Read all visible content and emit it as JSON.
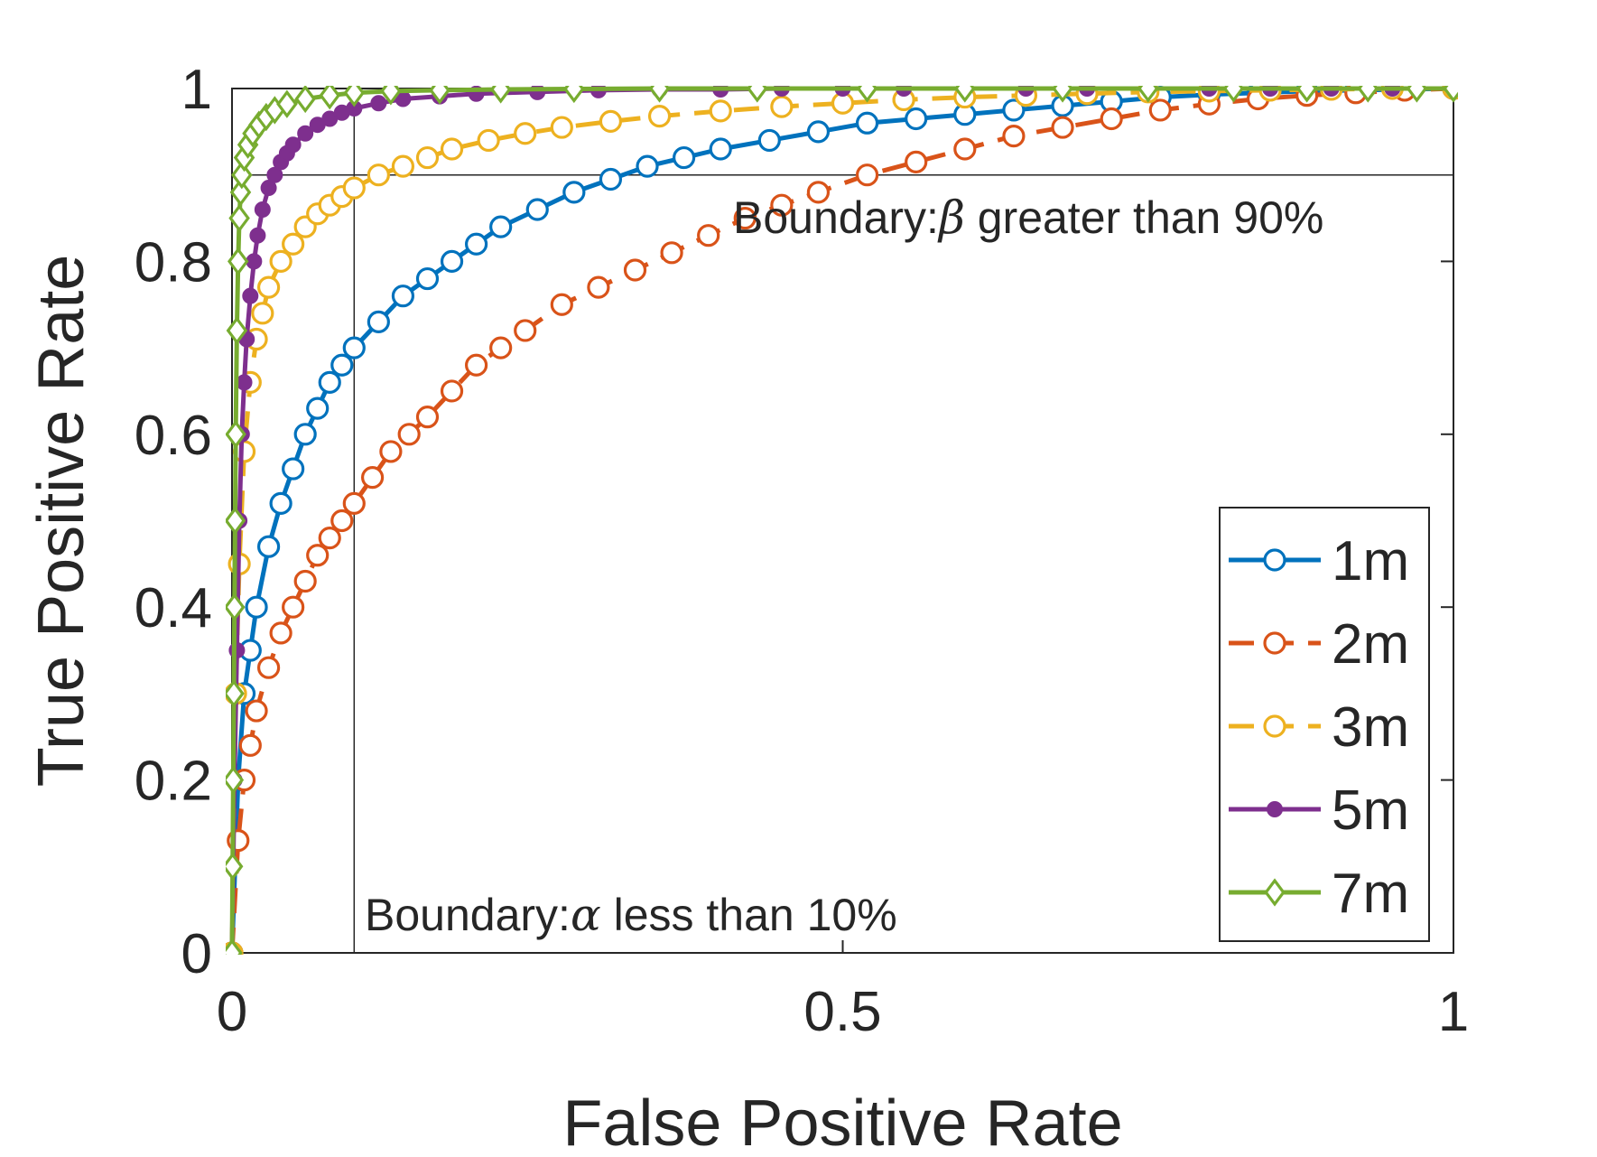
{
  "chart_data": {
    "type": "line",
    "title": "",
    "xlabel": "False Positive Rate",
    "ylabel": "True Positive Rate",
    "xlim": [
      0,
      1
    ],
    "ylim": [
      0,
      1
    ],
    "x_ticks": [
      "0",
      "0.5",
      "1"
    ],
    "y_ticks": [
      "0",
      "0.2",
      "0.4",
      "0.6",
      "0.8",
      "1"
    ],
    "grid": false,
    "legend_position": "bottom-right",
    "annotations": [
      {
        "prefix": "Boundary:",
        "symbol": "β",
        "suffix": " greater than 90%",
        "refers_to": "y = 0.9"
      },
      {
        "prefix": "Boundary:",
        "symbol": "α",
        "suffix": " less than 10%",
        "refers_to": "x = 0.1"
      }
    ],
    "boundary_lines": {
      "x": 0.1,
      "y": 0.9
    },
    "series": [
      {
        "name": "1m",
        "color": "#0072BD",
        "line_style": "solid",
        "marker": "circle-open",
        "x": [
          0,
          0.005,
          0.01,
          0.015,
          0.02,
          0.03,
          0.04,
          0.05,
          0.06,
          0.07,
          0.08,
          0.09,
          0.1,
          0.12,
          0.14,
          0.16,
          0.18,
          0.2,
          0.22,
          0.25,
          0.28,
          0.31,
          0.34,
          0.37,
          0.4,
          0.44,
          0.48,
          0.52,
          0.56,
          0.6,
          0.64,
          0.68,
          0.72,
          0.76,
          0.8,
          0.84,
          0.88,
          0.92,
          0.96,
          1.0
        ],
        "y": [
          0,
          0.2,
          0.3,
          0.35,
          0.4,
          0.47,
          0.52,
          0.56,
          0.6,
          0.63,
          0.66,
          0.68,
          0.7,
          0.73,
          0.76,
          0.78,
          0.8,
          0.82,
          0.84,
          0.86,
          0.88,
          0.895,
          0.91,
          0.92,
          0.93,
          0.94,
          0.95,
          0.96,
          0.965,
          0.97,
          0.975,
          0.98,
          0.985,
          0.99,
          0.993,
          0.995,
          0.997,
          0.998,
          0.999,
          1.0
        ]
      },
      {
        "name": "2m",
        "color": "#D95319",
        "line_style": "dashed",
        "marker": "circle-open",
        "x": [
          0,
          0.005,
          0.01,
          0.015,
          0.02,
          0.03,
          0.04,
          0.05,
          0.06,
          0.07,
          0.08,
          0.09,
          0.1,
          0.115,
          0.13,
          0.145,
          0.16,
          0.18,
          0.2,
          0.22,
          0.24,
          0.27,
          0.3,
          0.33,
          0.36,
          0.39,
          0.42,
          0.45,
          0.48,
          0.52,
          0.56,
          0.6,
          0.64,
          0.68,
          0.72,
          0.76,
          0.8,
          0.84,
          0.88,
          0.92,
          0.96,
          1.0
        ],
        "y": [
          0,
          0.13,
          0.2,
          0.24,
          0.28,
          0.33,
          0.37,
          0.4,
          0.43,
          0.46,
          0.48,
          0.5,
          0.52,
          0.55,
          0.58,
          0.6,
          0.62,
          0.65,
          0.68,
          0.7,
          0.72,
          0.75,
          0.77,
          0.79,
          0.81,
          0.83,
          0.85,
          0.865,
          0.88,
          0.9,
          0.915,
          0.93,
          0.945,
          0.955,
          0.965,
          0.975,
          0.982,
          0.988,
          0.992,
          0.995,
          0.998,
          1.0
        ]
      },
      {
        "name": "3m",
        "color": "#EDB120",
        "line_style": "dashed",
        "marker": "circle-open",
        "x": [
          0,
          0.003,
          0.006,
          0.01,
          0.015,
          0.02,
          0.025,
          0.03,
          0.04,
          0.05,
          0.06,
          0.07,
          0.08,
          0.09,
          0.1,
          0.12,
          0.14,
          0.16,
          0.18,
          0.21,
          0.24,
          0.27,
          0.31,
          0.35,
          0.4,
          0.45,
          0.5,
          0.55,
          0.6,
          0.65,
          0.7,
          0.75,
          0.8,
          0.85,
          0.9,
          0.95,
          1.0
        ],
        "y": [
          0,
          0.3,
          0.45,
          0.58,
          0.66,
          0.71,
          0.74,
          0.77,
          0.8,
          0.82,
          0.84,
          0.855,
          0.865,
          0.875,
          0.885,
          0.9,
          0.91,
          0.92,
          0.93,
          0.94,
          0.948,
          0.955,
          0.962,
          0.968,
          0.974,
          0.979,
          0.983,
          0.987,
          0.99,
          0.992,
          0.994,
          0.996,
          0.997,
          0.998,
          0.999,
          1.0,
          1.0
        ]
      },
      {
        "name": "5m",
        "color": "#7E2F8E",
        "line_style": "solid",
        "marker": "dot-filled",
        "x": [
          0,
          0.002,
          0.004,
          0.006,
          0.008,
          0.01,
          0.012,
          0.015,
          0.018,
          0.021,
          0.025,
          0.03,
          0.035,
          0.04,
          0.045,
          0.05,
          0.06,
          0.07,
          0.08,
          0.09,
          0.1,
          0.12,
          0.14,
          0.17,
          0.2,
          0.25,
          0.3,
          0.35,
          0.4,
          0.45,
          0.5,
          0.55,
          0.6,
          0.65,
          0.7,
          0.75,
          0.8,
          0.85,
          0.9,
          0.95,
          1.0
        ],
        "y": [
          0,
          0.2,
          0.35,
          0.5,
          0.6,
          0.66,
          0.71,
          0.76,
          0.8,
          0.83,
          0.86,
          0.885,
          0.9,
          0.915,
          0.925,
          0.935,
          0.948,
          0.958,
          0.965,
          0.972,
          0.977,
          0.983,
          0.988,
          0.991,
          0.994,
          0.996,
          0.998,
          0.999,
          0.999,
          1.0,
          1.0,
          1.0,
          1.0,
          1.0,
          1.0,
          1.0,
          1.0,
          1.0,
          1.0,
          1.0,
          1.0
        ]
      },
      {
        "name": "7m",
        "color": "#77AC30",
        "line_style": "solid",
        "marker": "diamond-open",
        "x": [
          0,
          0.0005,
          0.001,
          0.0015,
          0.002,
          0.0025,
          0.003,
          0.004,
          0.005,
          0.006,
          0.007,
          0.008,
          0.01,
          0.013,
          0.017,
          0.022,
          0.028,
          0.035,
          0.045,
          0.06,
          0.08,
          0.1,
          0.13,
          0.17,
          0.22,
          0.28,
          0.35,
          0.43,
          0.52,
          0.6,
          0.68,
          0.75,
          0.82,
          0.88,
          0.93,
          0.97,
          1.0
        ],
        "y": [
          0,
          0.1,
          0.2,
          0.3,
          0.4,
          0.5,
          0.6,
          0.72,
          0.8,
          0.85,
          0.88,
          0.9,
          0.92,
          0.935,
          0.948,
          0.958,
          0.967,
          0.975,
          0.982,
          0.988,
          0.992,
          0.995,
          0.997,
          0.998,
          0.999,
          0.9995,
          1.0,
          1.0,
          1.0,
          1.0,
          1.0,
          1.0,
          1.0,
          1.0,
          1.0,
          1.0,
          1.0
        ]
      }
    ]
  }
}
